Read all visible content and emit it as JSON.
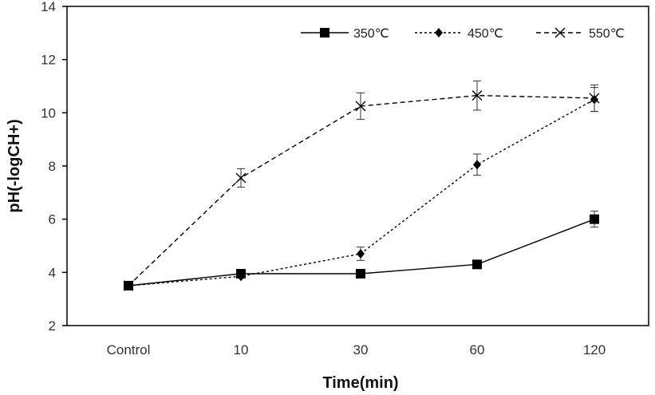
{
  "chart_data": {
    "type": "line",
    "xlabel": "Time(min)",
    "ylabel": "pH(-logCH+)",
    "categories": [
      "Control",
      "10",
      "30",
      "60",
      "120"
    ],
    "ylim": [
      2,
      14
    ],
    "yticks": [
      2,
      4,
      6,
      8,
      10,
      12,
      14
    ],
    "grid": false,
    "legend_position": "top-right",
    "series": [
      {
        "name": "350℃",
        "marker": "square",
        "line_style": "solid",
        "values": [
          3.5,
          3.95,
          3.95,
          4.3,
          6.0
        ],
        "errors": [
          0,
          0.05,
          0.1,
          0.15,
          0.3
        ]
      },
      {
        "name": "450℃",
        "marker": "diamond",
        "line_style": "dotted",
        "values": [
          3.5,
          3.85,
          4.7,
          8.05,
          10.5
        ],
        "errors": [
          0,
          0.05,
          0.25,
          0.4,
          0.45
        ]
      },
      {
        "name": "550℃",
        "marker": "x",
        "line_style": "dashed",
        "values": [
          3.5,
          7.55,
          10.25,
          10.65,
          10.55
        ],
        "errors": [
          0,
          0.35,
          0.5,
          0.55,
          0.5
        ]
      }
    ],
    "colors": {
      "line": "#000000",
      "axis": "#000000",
      "text": "#333333"
    }
  }
}
